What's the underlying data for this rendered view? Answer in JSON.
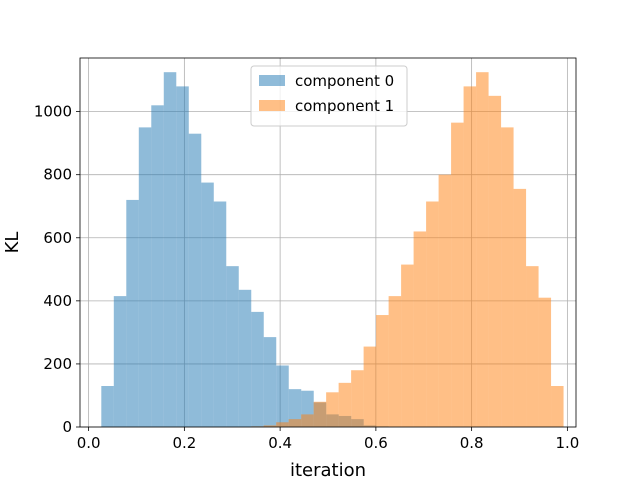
{
  "chart_data": {
    "type": "bar",
    "title": "",
    "xlabel": "iteration",
    "ylabel": "KL",
    "xlim": [
      -0.018,
      1.018
    ],
    "ylim": [
      0,
      1170
    ],
    "xticks": [
      0.0,
      0.2,
      0.4,
      0.6,
      0.8,
      1.0
    ],
    "xtick_labels": [
      "0.0",
      "0.2",
      "0.4",
      "0.6",
      "0.8",
      "1.0"
    ],
    "yticks": [
      0,
      200,
      400,
      600,
      800,
      1000
    ],
    "ytick_labels": [
      "0",
      "200",
      "400",
      "600",
      "800",
      "1000"
    ],
    "grid": true,
    "legend_position": "top-center",
    "bin_width": 0.0261,
    "series": [
      {
        "name": "component 0",
        "color": "#1f77b4",
        "alpha": 0.5,
        "bin_start": 0.0265,
        "values": [
          130,
          415,
          720,
          950,
          1020,
          1125,
          1080,
          930,
          775,
          715,
          510,
          435,
          365,
          285,
          195,
          120,
          115,
          78,
          40,
          35,
          25,
          5,
          2
        ]
      },
      {
        "name": "component 1",
        "color": "#ff7f0e",
        "alpha": 0.5,
        "bin_start": 0.3395,
        "values": [
          2,
          5,
          15,
          25,
          40,
          80,
          110,
          140,
          180,
          255,
          355,
          415,
          515,
          620,
          715,
          800,
          965,
          1080,
          1125,
          1050,
          950,
          755,
          510,
          410,
          130
        ]
      }
    ]
  }
}
